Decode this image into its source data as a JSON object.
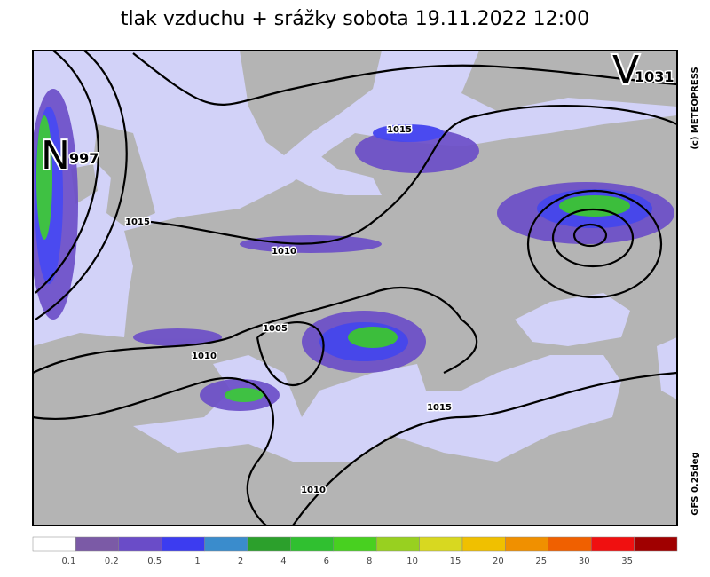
{
  "title": "tlak vzduchu + srážky  sobota 19.11.2022 12:00",
  "credit": "(c) METEOPRESS",
  "model": "GFS 0.25deg",
  "centers": [
    {
      "letter": "N",
      "value": "997"
    },
    {
      "letter": "V",
      "value": "1031"
    }
  ],
  "isobar_labels": [
    "1015",
    "1015",
    "1010",
    "1005",
    "1010",
    "1015",
    "1010"
  ],
  "colorbar": {
    "colors": [
      "#ffffff",
      "#7b5aa6",
      "#6a4cc8",
      "#3c3cf0",
      "#3a8ccc",
      "#2ca02c",
      "#30c030",
      "#48d020",
      "#98d020",
      "#d8d820",
      "#f0c000",
      "#f09000",
      "#f06000",
      "#f01010",
      "#a00000"
    ],
    "labels": [
      "0.1",
      "0.2",
      "0.5",
      "1",
      "2",
      "4",
      "6",
      "8",
      "10",
      "15",
      "20",
      "25",
      "30",
      "35"
    ]
  }
}
